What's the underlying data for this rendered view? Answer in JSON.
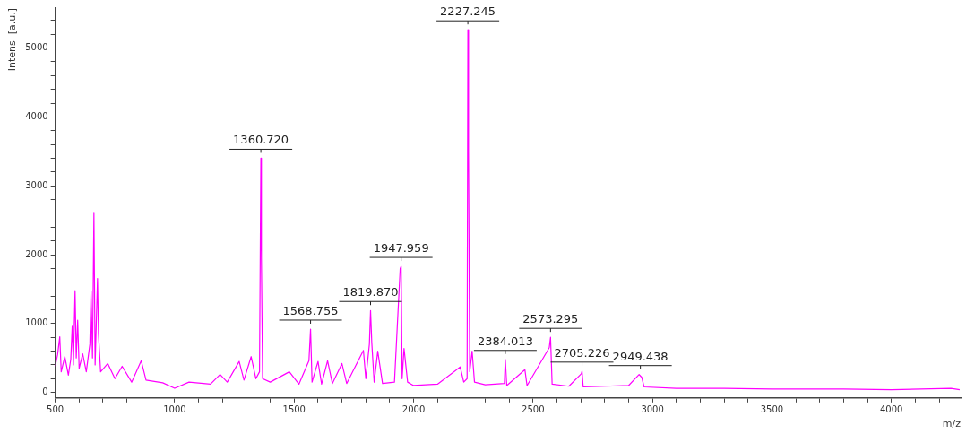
{
  "chart_data": {
    "type": "line",
    "xlabel": "m/z",
    "ylabel": "Intens. [a.u.]",
    "color": "#ff00ff",
    "marker": "none",
    "line_style": "solid",
    "grid": false,
    "legend": false,
    "x": [
      500,
      510,
      519,
      525,
      540,
      555,
      565,
      571,
      576,
      583,
      588,
      594,
      600,
      615,
      630,
      645,
      650,
      656,
      662,
      667,
      677,
      681,
      690,
      720,
      750,
      780,
      820,
      860,
      880,
      950,
      1000,
      1060,
      1150,
      1190,
      1220,
      1270,
      1290,
      1320,
      1340,
      1355,
      1360.72,
      1363,
      1368,
      1400,
      1480,
      1520,
      1562,
      1568.76,
      1575,
      1600,
      1615,
      1640,
      1660,
      1700,
      1720,
      1790,
      1800,
      1815,
      1819.87,
      1825,
      1835,
      1850,
      1870,
      1920,
      1944,
      1947.96,
      1952,
      1960,
      1975,
      2000,
      2100,
      2195,
      2210,
      2224,
      2227.25,
      2230,
      2235,
      2245,
      2255,
      2300,
      2380,
      2384.01,
      2390,
      2466,
      2475,
      2568,
      2573.3,
      2580,
      2650,
      2702,
      2705.23,
      2710,
      2800,
      2900,
      2944,
      2949.44,
      2955,
      2965,
      3100,
      3300,
      3500,
      3800,
      4000,
      4250,
      4286
    ],
    "values": [
      380,
      550,
      808,
      300,
      520,
      250,
      480,
      960,
      400,
      1477,
      500,
      1048,
      350,
      560,
      300,
      700,
      1465,
      500,
      2614,
      400,
      1654,
      850,
      300,
      420,
      200,
      380,
      150,
      460,
      180,
      140,
      60,
      150,
      120,
      260,
      150,
      450,
      180,
      520,
      200,
      300,
      3400,
      1960,
      200,
      150,
      300,
      120,
      460,
      920,
      150,
      450,
      120,
      460,
      130,
      420,
      130,
      610,
      200,
      700,
      1190,
      720,
      150,
      600,
      130,
      150,
      1800,
      1830,
      200,
      640,
      150,
      100,
      120,
      370,
      150,
      200,
      5265,
      3520,
      300,
      600,
      150,
      110,
      130,
      480,
      100,
      330,
      100,
      650,
      800,
      120,
      90,
      270,
      310,
      80,
      90,
      100,
      260,
      240,
      220,
      80,
      60,
      60,
      50,
      50,
      40,
      60,
      40
    ],
    "xlim": [
      500,
      4290
    ],
    "ylim": [
      -80,
      5580
    ],
    "xticks": [
      {
        "value": 500,
        "label": "500"
      },
      {
        "value": 600,
        "label": null
      },
      {
        "value": 700,
        "label": null
      },
      {
        "value": 800,
        "label": null
      },
      {
        "value": 900,
        "label": null
      },
      1000,
      {
        "value": 1100,
        "label": null
      },
      {
        "value": 1200,
        "label": null
      },
      {
        "value": 1300,
        "label": null
      },
      {
        "value": 1400,
        "label": null
      },
      1500,
      {
        "value": 1600,
        "label": null
      },
      {
        "value": 1700,
        "label": null
      },
      {
        "value": 1800,
        "label": null
      },
      {
        "value": 1900,
        "label": null
      },
      2000,
      {
        "value": 2100,
        "label": null
      },
      {
        "value": 2200,
        "label": null
      },
      {
        "value": 2300,
        "label": null
      },
      {
        "value": 2400,
        "label": null
      },
      2500,
      {
        "value": 2600,
        "label": null
      },
      {
        "value": 2700,
        "label": null
      },
      {
        "value": 2800,
        "label": null
      },
      {
        "value": 2900,
        "label": null
      },
      3000,
      {
        "value": 3100,
        "label": null
      },
      {
        "value": 3200,
        "label": null
      },
      {
        "value": 3300,
        "label": null
      },
      {
        "value": 3400,
        "label": null
      },
      3500,
      {
        "value": 3600,
        "label": null
      },
      {
        "value": 3700,
        "label": null
      },
      {
        "value": 3800,
        "label": null
      },
      {
        "value": 3900,
        "label": null
      },
      4000,
      {
        "value": 4100,
        "label": null
      },
      {
        "value": 4200,
        "label": null
      }
    ],
    "yticks": [
      0,
      {
        "value": 200,
        "label": null
      },
      {
        "value": 400,
        "label": null
      },
      {
        "value": 600,
        "label": null
      },
      {
        "value": 800,
        "label": null
      },
      1000,
      {
        "value": 1200,
        "label": null
      },
      {
        "value": 1400,
        "label": null
      },
      {
        "value": 1600,
        "label": null
      },
      {
        "value": 1800,
        "label": null
      },
      2000,
      {
        "value": 2200,
        "label": null
      },
      {
        "value": 2400,
        "label": null
      },
      {
        "value": 2600,
        "label": null
      },
      {
        "value": 2800,
        "label": null
      },
      3000,
      {
        "value": 3200,
        "label": null
      },
      {
        "value": 3400,
        "label": null
      },
      {
        "value": 3600,
        "label": null
      },
      {
        "value": 3800,
        "label": null
      },
      4000,
      {
        "value": 4200,
        "label": null
      },
      {
        "value": 4400,
        "label": null
      },
      {
        "value": 4600,
        "label": null
      },
      {
        "value": 4800,
        "label": null
      },
      5000,
      {
        "value": 5200,
        "label": null
      },
      {
        "value": 5400,
        "label": null
      }
    ],
    "annotations": [
      {
        "text": "1360.720",
        "x": 1360.72,
        "y": 3400
      },
      {
        "text": "1568.755",
        "x": 1568.76,
        "y": 920
      },
      {
        "text": "1819.870",
        "x": 1819.87,
        "y": 1190
      },
      {
        "text": "1947.959",
        "x": 1947.96,
        "y": 1830
      },
      {
        "text": "2227.245",
        "x": 2227.25,
        "y": 5265
      },
      {
        "text": "2384.013",
        "x": 2384.01,
        "y": 480
      },
      {
        "text": "2573.295",
        "x": 2573.3,
        "y": 800
      },
      {
        "text": "2705.226",
        "x": 2705.23,
        "y": 310
      },
      {
        "text": "2949.438",
        "x": 2949.44,
        "y": 260
      }
    ]
  }
}
